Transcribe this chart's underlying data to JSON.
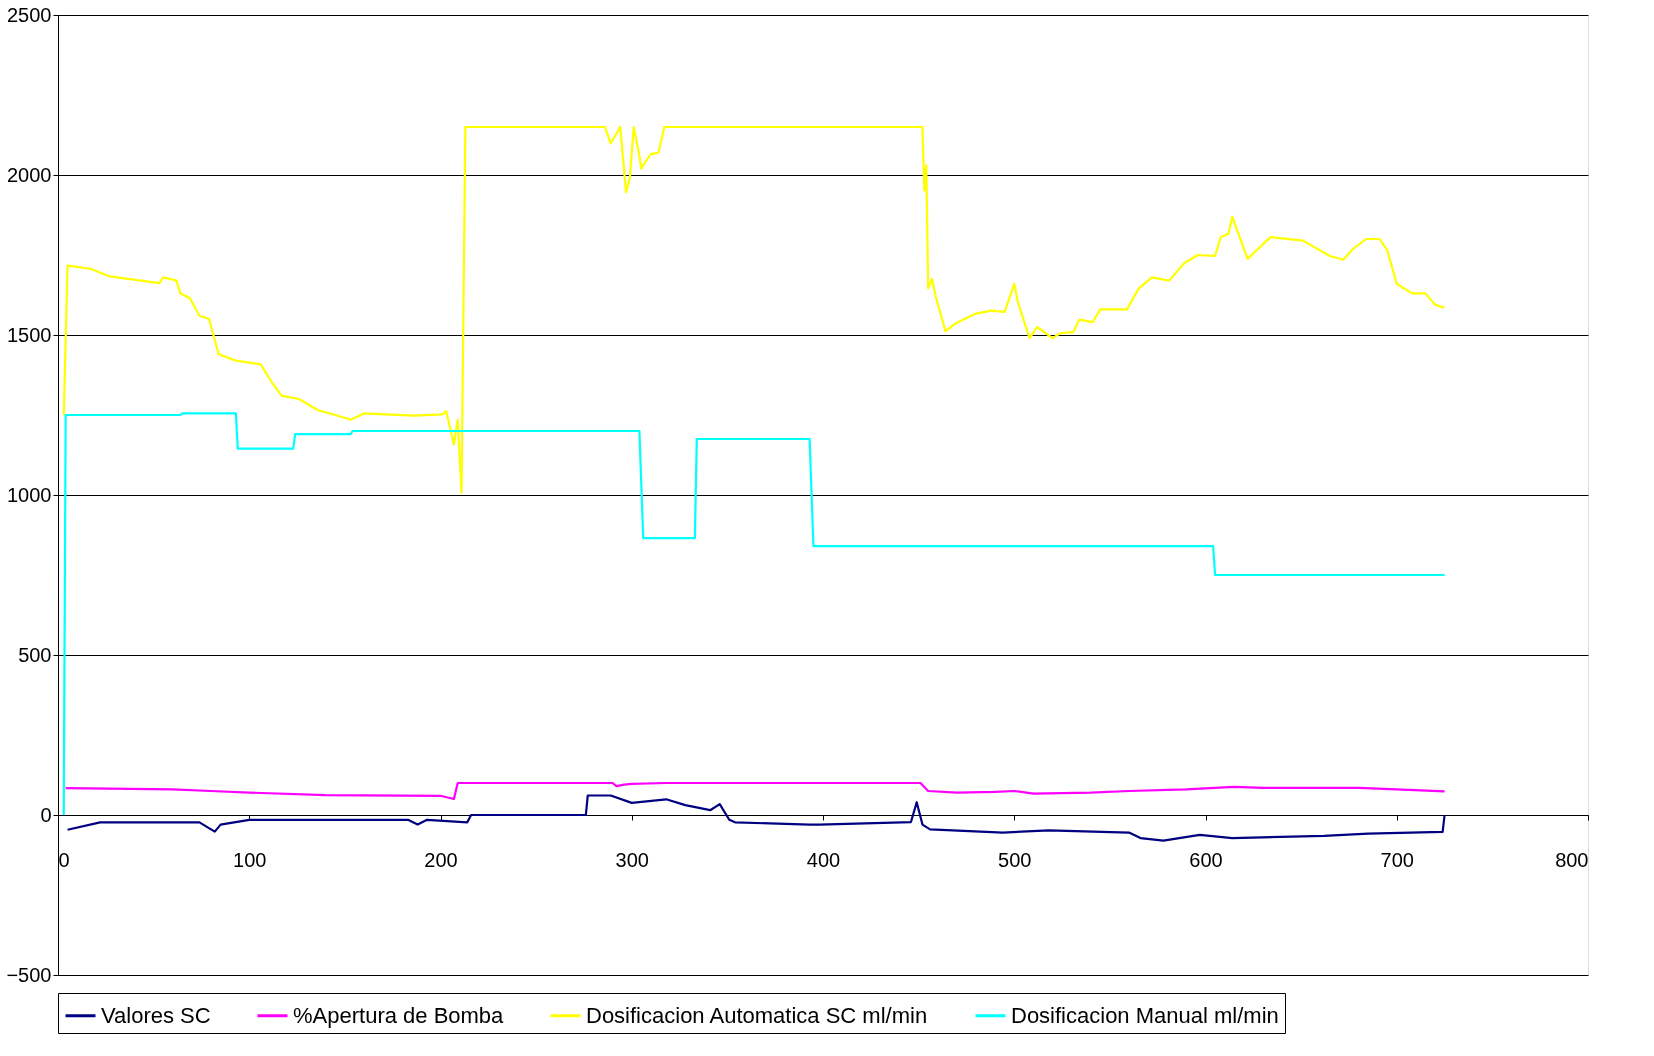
{
  "chart_data": {
    "type": "line",
    "xlim": [
      0,
      800
    ],
    "xticks": [
      0,
      100,
      200,
      300,
      400,
      500,
      600,
      700,
      800
    ],
    "ylim": [
      -500,
      2500
    ],
    "yticks": [
      -500,
      0,
      500,
      1000,
      1500,
      2000,
      2500
    ],
    "grid": "y",
    "legend": "bottom",
    "marker": "none",
    "line_style": "solid",
    "series": [
      {
        "name": "Valores SC",
        "color": "#000080",
        "x": [
          5,
          22,
          74,
          80,
          82,
          85,
          100,
          183,
          188,
          193,
          214,
          216,
          276,
          277,
          289,
          300,
          318,
          328,
          341,
          346,
          351,
          354,
          393,
          398,
          446,
          449,
          452,
          456,
          494,
          518,
          560,
          566,
          578,
          597,
          614,
          662,
          685,
          724,
          725
        ],
        "values": [
          -46,
          -23,
          -23,
          -45,
          -52,
          -30,
          -15,
          -15,
          -30,
          -15,
          -23,
          0,
          0,
          61,
          61,
          38,
          49,
          31,
          15,
          34,
          -15,
          -23,
          -30,
          -30,
          -22,
          40,
          -30,
          -45,
          -55,
          -48,
          -55,
          -72,
          -80,
          -62,
          -72,
          -65,
          -58,
          -53,
          0
        ]
      },
      {
        "name": "%Apertura de Bomba",
        "color": "#ff00ff",
        "x": [
          4,
          60,
          80,
          100,
          140,
          200,
          207,
          209,
          290,
          292,
          296,
          300,
          318,
          451,
          455,
          470,
          490,
          500,
          510,
          540,
          560,
          590,
          615,
          630,
          680,
          700,
          725
        ],
        "values": [
          84,
          80,
          75,
          70,
          62,
          60,
          50,
          100,
          100,
          90,
          95,
          97,
          100,
          100,
          75,
          70,
          72,
          75,
          67,
          70,
          75,
          80,
          88,
          85,
          85,
          80,
          74
        ]
      },
      {
        "name": "Dosificacion Automatica SC ml/min",
        "color": "#ffff00",
        "x": [
          3,
          5,
          17,
          27,
          53,
          55,
          62,
          64,
          69,
          74,
          79,
          84,
          93,
          106,
          112,
          117,
          126,
          136,
          145,
          153,
          160,
          186,
          201,
          203,
          207,
          209,
          211,
          213,
          286,
          289,
          294,
          297,
          299,
          301,
          304,
          305,
          307,
          310,
          314,
          317,
          452,
          453,
          454,
          455,
          457,
          459,
          464,
          469,
          475,
          480,
          488,
          495,
          500,
          502,
          508,
          512,
          520,
          524,
          531,
          534,
          541,
          545,
          559,
          565,
          572,
          581,
          589,
          596,
          605,
          608,
          612,
          614,
          622,
          634,
          651,
          665,
          672,
          677,
          684,
          691,
          695,
          700,
          708,
          715,
          720,
          725
        ],
        "values": [
          1250,
          1717,
          1707,
          1683,
          1662,
          1680,
          1670,
          1630,
          1615,
          1560,
          1550,
          1440,
          1420,
          1408,
          1350,
          1310,
          1300,
          1265,
          1250,
          1235,
          1255,
          1248,
          1252,
          1262,
          1158,
          1235,
          1007,
          2150,
          2150,
          2099,
          2150,
          1946,
          1990,
          2150,
          2060,
          2020,
          2040,
          2065,
          2070,
          2150,
          2150,
          1952,
          2030,
          1646,
          1675,
          1620,
          1512,
          1535,
          1553,
          1567,
          1576,
          1572,
          1660,
          1600,
          1490,
          1525,
          1490,
          1505,
          1510,
          1548,
          1540,
          1580,
          1580,
          1645,
          1680,
          1670,
          1725,
          1750,
          1747,
          1806,
          1816,
          1870,
          1738,
          1806,
          1795,
          1747,
          1735,
          1768,
          1800,
          1800,
          1765,
          1660,
          1630,
          1630,
          1595,
          1585
        ]
      },
      {
        "name": "Dosificacion Manual ml/min",
        "color": "#00ffff",
        "x": [
          3,
          4,
          64,
          65,
          93,
          94,
          123,
          124,
          153,
          154,
          304,
          306,
          333,
          334,
          393,
          395,
          604,
          605,
          725
        ],
        "values": [
          0,
          1250,
          1250,
          1255,
          1255,
          1145,
          1145,
          1190,
          1190,
          1200,
          1200,
          865,
          865,
          1175,
          1175,
          840,
          840,
          750,
          750
        ]
      }
    ]
  }
}
